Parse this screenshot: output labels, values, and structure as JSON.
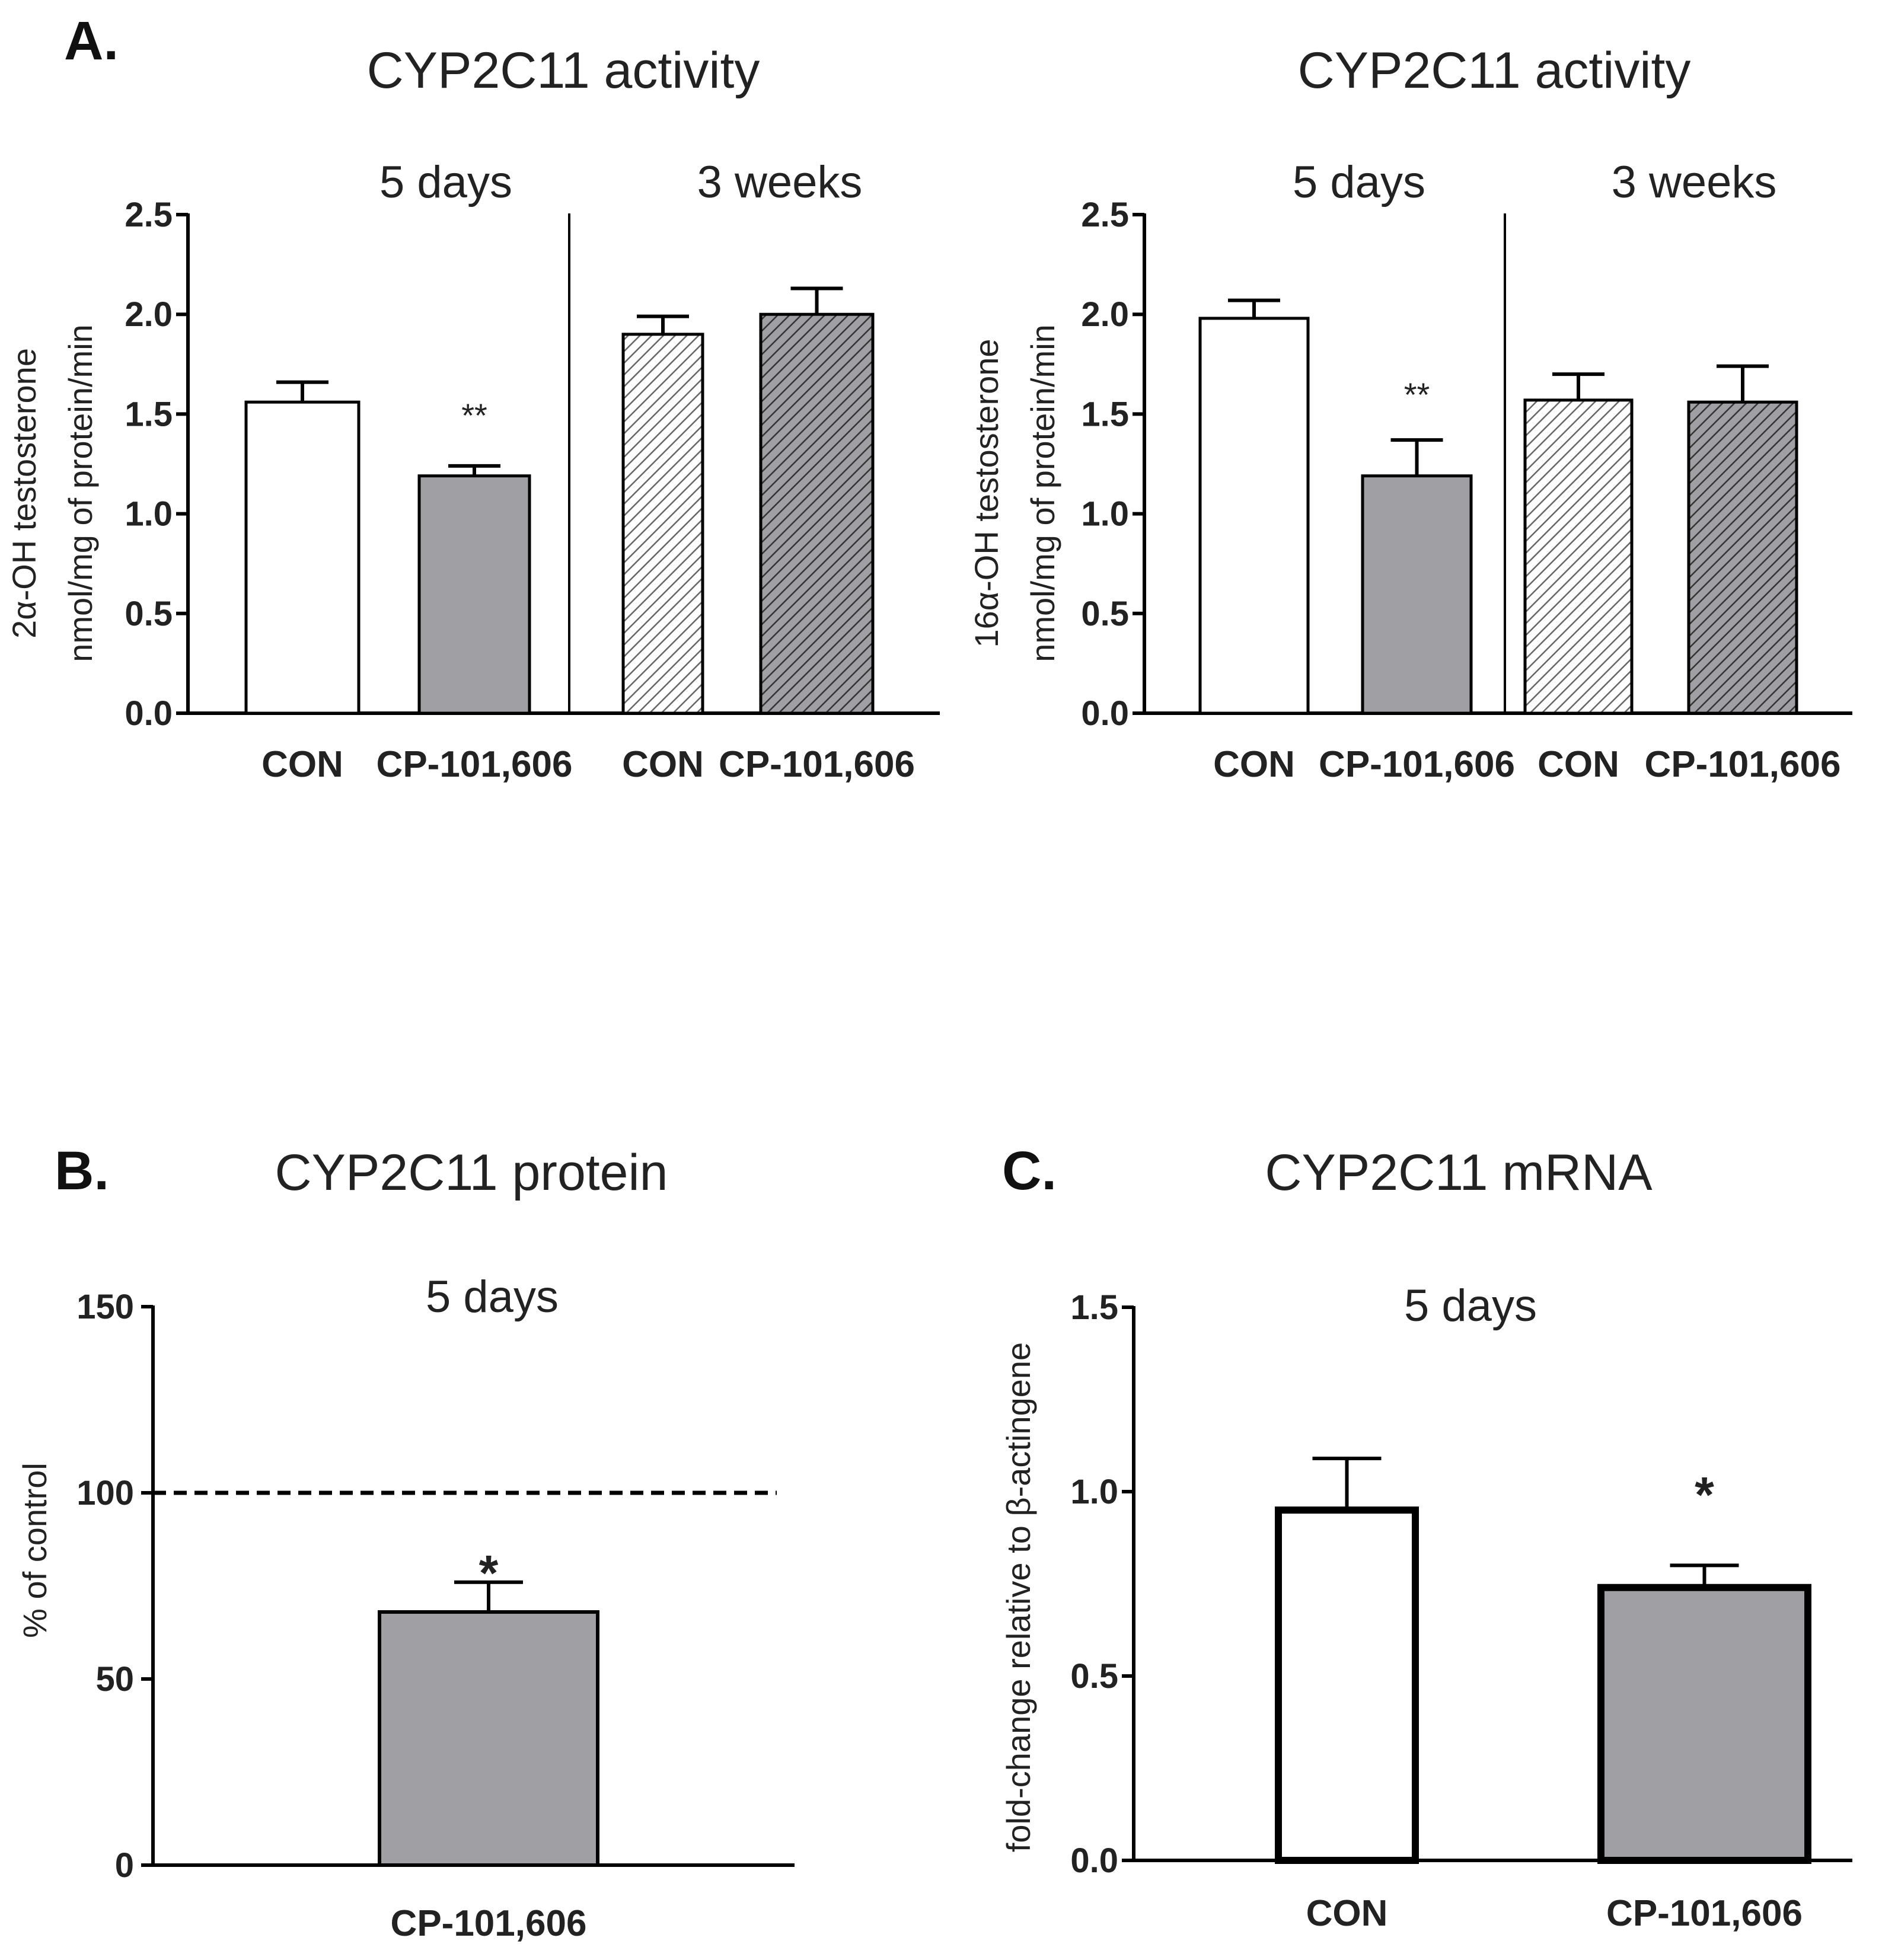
{
  "figure": {
    "panels": [
      "A.",
      "B.",
      "C."
    ]
  },
  "colors": {
    "con": "#ffffff",
    "treated": "#a0a0a4",
    "edge": "#000000",
    "hatch_light": "#666666",
    "hatch_dark": "#333333"
  },
  "chart_data": [
    {
      "id": "A1",
      "type": "bar",
      "panel": "A.",
      "title": "CYP2C11 activity",
      "ylabel_lines": [
        "2α-OH testosterone",
        "nmol/mg of protein/min"
      ],
      "ylim": [
        0,
        2.5
      ],
      "yticks": [
        "0.0",
        "0.5",
        "1.0",
        "1.5",
        "2.0",
        "2.5"
      ],
      "groups": [
        {
          "label": "5 days",
          "categories": [
            "CON",
            "CP-101,606"
          ]
        },
        {
          "label": "3 weeks",
          "categories": [
            "CON",
            "CP-101,606"
          ]
        }
      ],
      "categories": [
        "CON",
        "CP-101,606",
        "CON",
        "CP-101,606"
      ],
      "values": [
        1.56,
        1.19,
        1.9,
        2.0
      ],
      "errors": [
        0.1,
        0.05,
        0.09,
        0.13
      ],
      "significance": [
        "",
        "**",
        "",
        ""
      ]
    },
    {
      "id": "A2",
      "type": "bar",
      "panel": "",
      "title": "CYP2C11 activity",
      "ylabel_lines": [
        "16α-OH testosterone",
        "nmol/mg of protein/min"
      ],
      "ylim": [
        0,
        2.5
      ],
      "yticks": [
        "0.0",
        "0.5",
        "1.0",
        "1.5",
        "2.0",
        "2.5"
      ],
      "groups": [
        {
          "label": "5 days",
          "categories": [
            "CON",
            "CP-101,606"
          ]
        },
        {
          "label": "3 weeks",
          "categories": [
            "CON",
            "CP-101,606"
          ]
        }
      ],
      "categories": [
        "CON",
        "CP-101,606",
        "CON",
        "CP-101,606"
      ],
      "values": [
        1.98,
        1.19,
        1.57,
        1.56
      ],
      "errors": [
        0.09,
        0.18,
        0.13,
        0.18
      ],
      "significance": [
        "",
        "**",
        "",
        ""
      ]
    },
    {
      "id": "B",
      "type": "bar",
      "panel": "B.",
      "title": "CYP2C11 protein",
      "ylabel_lines": [
        "% of control"
      ],
      "ylim": [
        0,
        150
      ],
      "yticks": [
        "0",
        "50",
        "100",
        "150"
      ],
      "group_label": "5 days",
      "categories": [
        "CP-101,606"
      ],
      "values": [
        68
      ],
      "errors": [
        8
      ],
      "significance": [
        "*"
      ],
      "reference_line": 100
    },
    {
      "id": "C",
      "type": "bar",
      "panel": "C.",
      "title": "CYP2C11 mRNA",
      "ylabel_lines": [
        "fold-change relative to β-actingene"
      ],
      "ylim": [
        0,
        1.5
      ],
      "yticks": [
        "0.0",
        "0.5",
        "1.0",
        "1.5"
      ],
      "group_label": "5 days",
      "categories": [
        "CON",
        "CP-101,606"
      ],
      "values": [
        0.95,
        0.74
      ],
      "errors": [
        0.14,
        0.06
      ],
      "significance": [
        "",
        "*"
      ]
    }
  ]
}
